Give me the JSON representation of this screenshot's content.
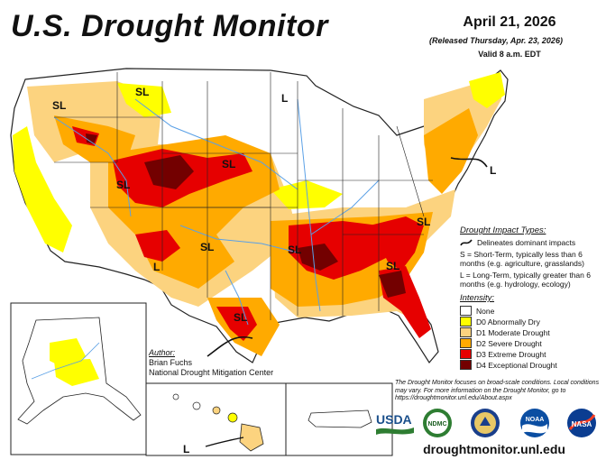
{
  "title": "U.S. Drought Monitor",
  "map_date": "April 21, 2026",
  "released": "(Released Thursday, Apr. 23, 2026)",
  "valid": "Valid 8 a.m. EDT",
  "map_labels": {
    "sl": "SL",
    "l": "L"
  },
  "impact": {
    "header": "Drought Impact Types:",
    "delineates": "Delineates dominant impacts",
    "short_term": "S = Short-Term, typically less than 6 months (e.g. agriculture, grasslands)",
    "long_term": "L = Long-Term, typically greater than 6 months (e.g. hydrology, ecology)"
  },
  "intensity": {
    "header": "Intensity:",
    "levels": [
      {
        "label": "None",
        "color": "#ffffff"
      },
      {
        "label": "D0 Abnormally Dry",
        "color": "#ffff00"
      },
      {
        "label": "D1 Moderate Drought",
        "color": "#fcd37f"
      },
      {
        "label": "D2 Severe Drought",
        "color": "#ffaa00"
      },
      {
        "label": "D3 Extreme Drought",
        "color": "#e60000"
      },
      {
        "label": "D4 Exceptional Drought",
        "color": "#730000"
      }
    ]
  },
  "author": {
    "header": "Author:",
    "name": "Brian Fuchs",
    "org": "National Drought Mitigation Center"
  },
  "note": "The Drought Monitor focuses on broad-scale conditions. Local conditions may vary. For more information on the Drought Monitor, go to https://droughtmonitor.unl.edu/About.aspx",
  "logos": {
    "usda": "USDA",
    "ndmc": "NDMC",
    "noaa": "NOAA",
    "nasa": "NASA"
  },
  "url": "droughtmonitor.unl.edu",
  "colors": {
    "river": "#5aa0e6",
    "border": "#222222"
  }
}
